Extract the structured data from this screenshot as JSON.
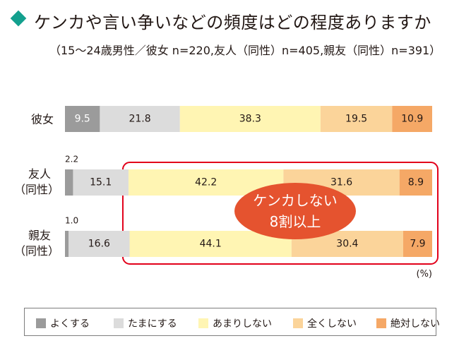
{
  "title": "ケンカや言い争いなどの頻度はどの程度ありますか",
  "subtitle": "（15〜24歳男性／彼女 n=220,友人（同性）n=405,親友（同性）n=391）",
  "unit": "(%)",
  "callout": {
    "line1": "ケンカしない",
    "line2": "8割以上"
  },
  "colors": {
    "accent": "#13a08e",
    "callout": "#e5532f",
    "highlight_border": "#e2001a",
    "series": [
      "#9b9b9b",
      "#dcdcdc",
      "#fff5b3",
      "#fbd49a",
      "#f5a866"
    ]
  },
  "chart_data": {
    "type": "bar",
    "orientation": "horizontal",
    "stacked": true,
    "percent_stacked": true,
    "categories": [
      "彼女",
      "友人（同性）",
      "親友（同性）"
    ],
    "series": [
      {
        "name": "よくする",
        "values": [
          9.5,
          2.2,
          1.0
        ]
      },
      {
        "name": "たまにする",
        "values": [
          21.8,
          15.1,
          16.6
        ]
      },
      {
        "name": "あまりしない",
        "values": [
          38.3,
          42.2,
          44.1
        ]
      },
      {
        "name": "全くしない",
        "values": [
          19.5,
          31.6,
          30.4
        ]
      },
      {
        "name": "絶対しない",
        "values": [
          10.9,
          8.9,
          7.9
        ]
      }
    ],
    "xlim": [
      0,
      100
    ],
    "legend": "bottom"
  }
}
